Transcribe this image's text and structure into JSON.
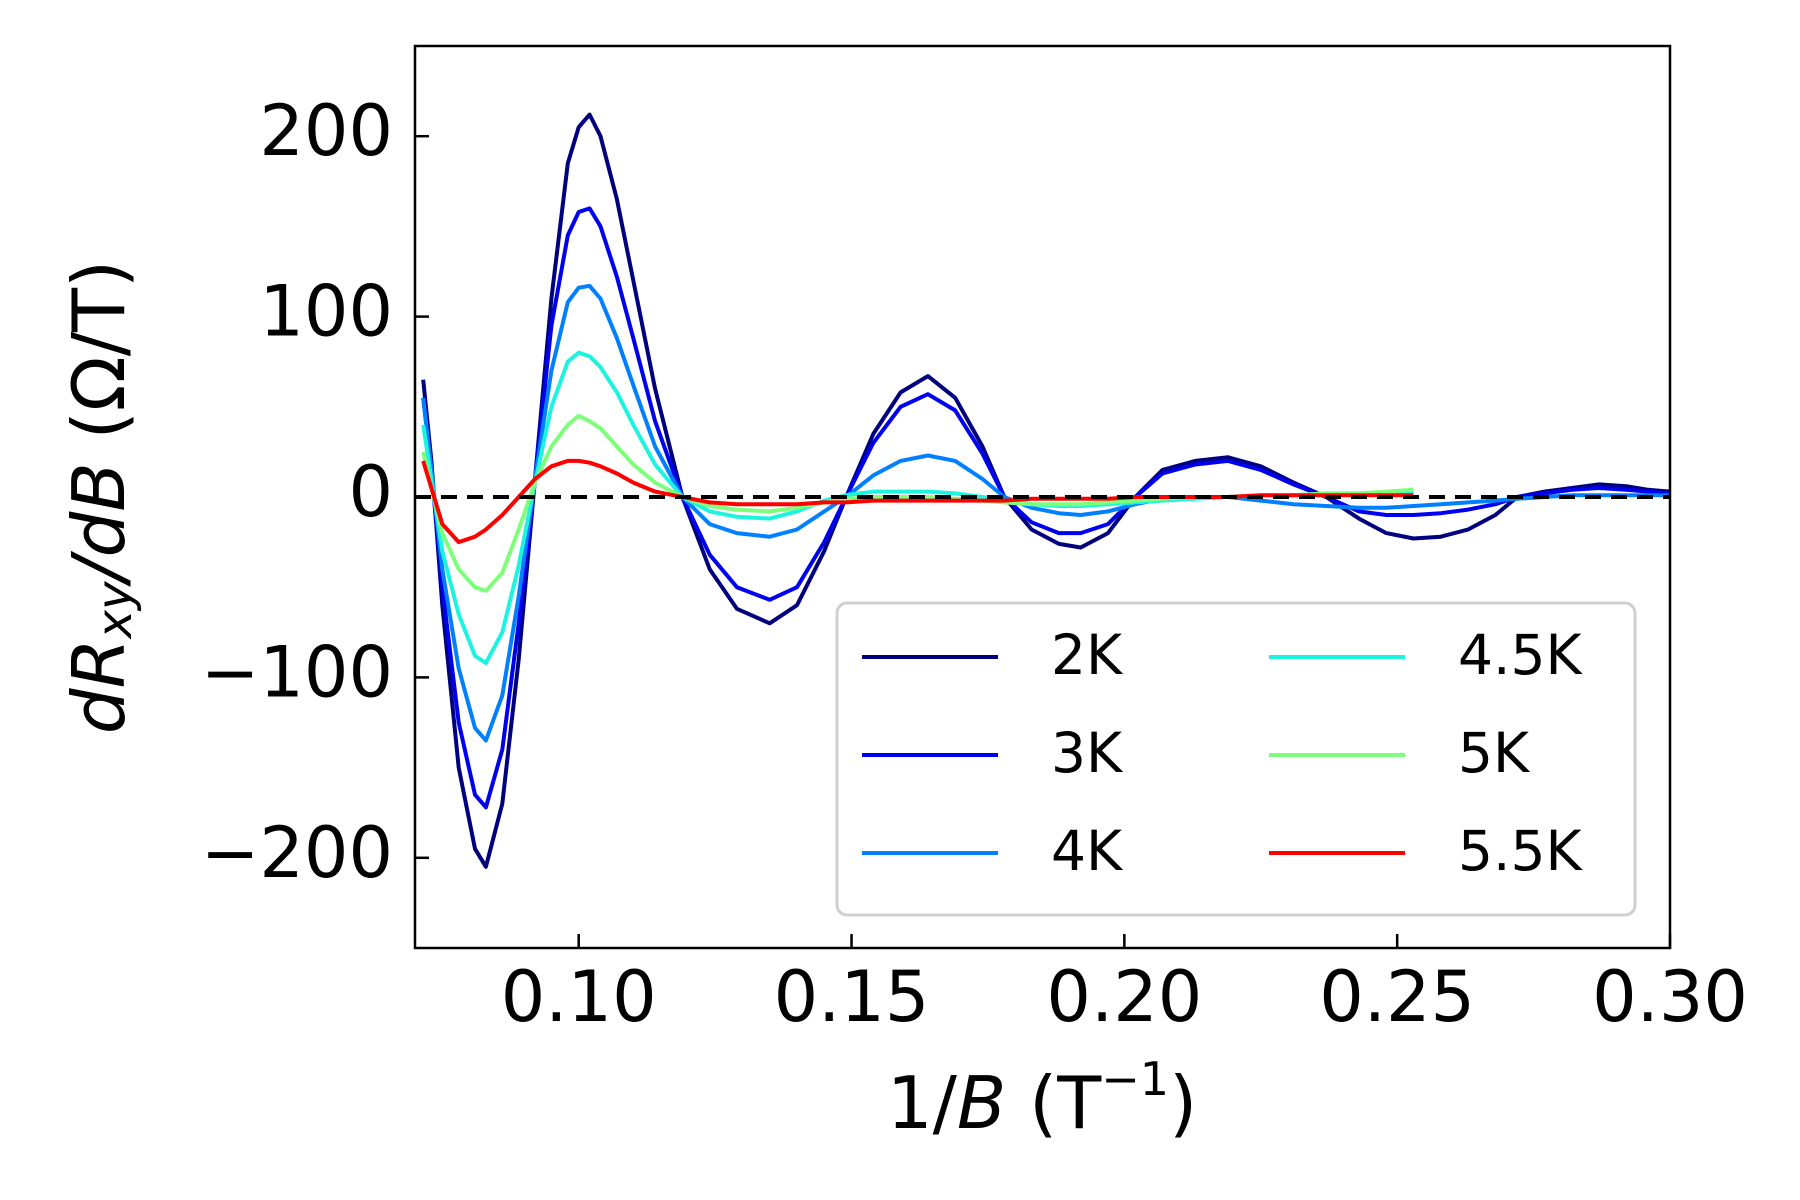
{
  "chart_data": {
    "type": "line",
    "xlabel_parts": [
      "1/",
      "B",
      " (T",
      "−1",
      ")"
    ],
    "ylabel_parts": [
      "d",
      "R",
      "xy",
      "/d",
      "B",
      " (Ω/T)"
    ],
    "xlim": [
      0.07,
      0.3
    ],
    "ylim": [
      -250,
      250
    ],
    "xticks": [
      {
        "value": 0.1,
        "label": "0.10"
      },
      {
        "value": 0.15,
        "label": "0.15"
      },
      {
        "value": 0.2,
        "label": "0.20"
      },
      {
        "value": 0.25,
        "label": "0.25"
      },
      {
        "value": 0.3,
        "label": "0.30"
      }
    ],
    "yticks": [
      {
        "value": -200,
        "label": "−200"
      },
      {
        "value": -100,
        "label": "−100"
      },
      0,
      100,
      200
    ],
    "reference_line": 0,
    "legend_loc": "lower right",
    "legend_columns": 2,
    "x": [
      0.0715,
      0.073,
      0.075,
      0.078,
      0.081,
      0.083,
      0.086,
      0.089,
      0.092,
      0.095,
      0.098,
      0.1,
      0.102,
      0.104,
      0.107,
      0.11,
      0.114,
      0.119,
      0.124,
      0.129,
      0.135,
      0.14,
      0.145,
      0.149,
      0.154,
      0.159,
      0.164,
      0.169,
      0.174,
      0.178,
      0.183,
      0.188,
      0.192,
      0.197,
      0.202,
      0.207,
      0.213,
      0.219,
      0.225,
      0.231,
      0.237,
      0.243,
      0.248,
      0.253,
      0.258,
      0.263,
      0.268,
      0.272,
      0.277,
      0.282,
      0.287,
      0.292,
      0.296,
      0.3
    ],
    "series": [
      {
        "name": "2K",
        "color": "#00007f",
        "values": [
          65,
          20,
          -60,
          -150,
          -195,
          -205,
          -170,
          -90,
          10,
          110,
          185,
          205,
          212,
          200,
          165,
          120,
          60,
          0,
          -40,
          -62,
          -70,
          -60,
          -30,
          0,
          35,
          58,
          67,
          55,
          28,
          0,
          -18,
          -26,
          -28,
          -20,
          0,
          15,
          20,
          22,
          17,
          8,
          0,
          -12,
          -20,
          -23,
          -22,
          -18,
          -10,
          0,
          3,
          5,
          7,
          6,
          4,
          3
        ]
      },
      {
        "name": "3K",
        "color": "#0000f0",
        "values": [
          55,
          15,
          -50,
          -125,
          -165,
          -172,
          -140,
          -70,
          10,
          95,
          145,
          158,
          160,
          150,
          122,
          88,
          42,
          0,
          -32,
          -50,
          -57,
          -50,
          -25,
          0,
          30,
          50,
          57,
          48,
          24,
          0,
          -14,
          -20,
          -20,
          -15,
          0,
          13,
          18,
          20,
          15,
          7,
          0,
          -8,
          -10,
          -10,
          -9,
          -7,
          -4,
          0,
          2,
          4,
          5,
          4,
          3,
          2
        ]
      },
      {
        "name": "4K",
        "color": "#0080ff",
        "values": [
          55,
          15,
          -40,
          -95,
          -128,
          -135,
          -110,
          -55,
          10,
          70,
          108,
          116,
          117,
          110,
          88,
          62,
          28,
          0,
          -15,
          -20,
          -22,
          -18,
          -8,
          0,
          12,
          20,
          23,
          20,
          10,
          0,
          -6,
          -9,
          -10,
          -8,
          -4,
          -1,
          0,
          0,
          -2,
          -4,
          -5,
          -6,
          -6,
          -5,
          -4,
          -3,
          -2,
          -1,
          0,
          1,
          1,
          1,
          1,
          1
        ]
      },
      {
        "name": "4.5K",
        "color": "#1cf4e0",
        "values": [
          40,
          10,
          -30,
          -65,
          -88,
          -92,
          -75,
          -38,
          8,
          50,
          75,
          80,
          78,
          72,
          58,
          40,
          18,
          0,
          -8,
          -11,
          -12,
          -8,
          -2,
          1,
          3,
          3,
          3,
          2,
          0,
          -2,
          -4,
          -5,
          -5,
          -4,
          -3,
          -2,
          -1,
          0,
          1,
          1,
          2,
          2,
          2,
          3,
          null,
          null,
          null,
          null,
          null,
          null,
          null,
          null,
          null,
          null
        ]
      },
      {
        "name": "5K",
        "color": "#7dff7a",
        "values": [
          25,
          5,
          -20,
          -40,
          -50,
          -52,
          -42,
          -18,
          8,
          28,
          40,
          45,
          42,
          38,
          28,
          18,
          8,
          0,
          -5,
          -7,
          -8,
          -6,
          -3,
          -1,
          0,
          0,
          0,
          -1,
          -2,
          -3,
          -4,
          -4,
          -4,
          -3,
          -2,
          -1,
          0,
          0,
          1,
          1,
          2,
          2,
          3,
          4,
          null,
          null,
          null,
          null,
          null,
          null,
          null,
          null,
          null,
          null
        ]
      },
      {
        "name": "5.5K",
        "color": "#ff0000",
        "values": [
          20,
          5,
          -15,
          -25,
          -22,
          -18,
          -10,
          0,
          10,
          17,
          20,
          20,
          19,
          17,
          13,
          8,
          3,
          0,
          -3,
          -4,
          -4,
          -4,
          -3,
          -3,
          -2,
          -2,
          -2,
          -2,
          -2,
          -2,
          -1,
          -1,
          -1,
          -1,
          0,
          0,
          0,
          0,
          1,
          1,
          1,
          1,
          1,
          1,
          null,
          null,
          null,
          null,
          null,
          null,
          null,
          null,
          null,
          null
        ]
      }
    ]
  }
}
